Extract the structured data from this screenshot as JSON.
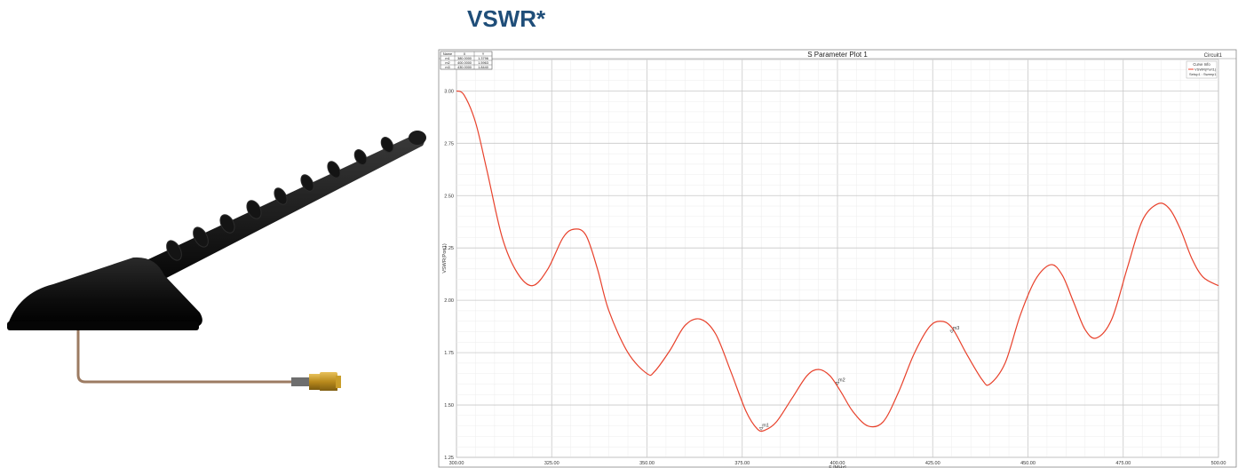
{
  "heading": "VSWR*",
  "product_image": {
    "depicts": "black shark-fin antenna with coiled whip and coax cable with gold SMA connector"
  },
  "chart_data": {
    "type": "line",
    "title": "S Parameter Plot 1",
    "circuit_label": "Circuit1",
    "xlabel": "F [MHz]",
    "ylabel": "VSWR(Port1)",
    "xlim": [
      300,
      500
    ],
    "ylim": [
      1.25,
      3.15
    ],
    "grid": true,
    "x_ticks": [
      "300.00",
      "325.00",
      "350.00",
      "375.00",
      "400.00",
      "425.00",
      "450.00",
      "475.00",
      "500.00"
    ],
    "y_ticks": [
      "3.00",
      "2.75",
      "2.50",
      "2.25",
      "2.00",
      "1.75",
      "1.50",
      "1.25"
    ],
    "x_tick_values": [
      300,
      325,
      350,
      375,
      400,
      425,
      450,
      475,
      500
    ],
    "y_tick_values": [
      3.0,
      2.75,
      2.5,
      2.25,
      2.0,
      1.75,
      1.5,
      1.25
    ],
    "legend": {
      "title": "Curve Info",
      "entries": [
        "VSWR(Port1)",
        "Setup1 : Sweep1"
      ],
      "placement": "top-right"
    },
    "series": [
      {
        "color": "#e8412b",
        "x": [
          300,
          302,
          305,
          308,
          312,
          316,
          320,
          324,
          328,
          331,
          334,
          337,
          340,
          345,
          350,
          352,
          356,
          360,
          364,
          368,
          372,
          376,
          379,
          381,
          384,
          388,
          392,
          395,
          398,
          401,
          404,
          408,
          412,
          416,
          420,
          424,
          427,
          430,
          434,
          438,
          440,
          444,
          448,
          452,
          456,
          459,
          462,
          465,
          468,
          472,
          476,
          480,
          484,
          487,
          490,
          493,
          496,
          500
        ],
        "y": [
          3.0,
          2.98,
          2.85,
          2.62,
          2.3,
          2.13,
          2.07,
          2.15,
          2.3,
          2.34,
          2.31,
          2.15,
          1.95,
          1.75,
          1.65,
          1.66,
          1.76,
          1.88,
          1.91,
          1.84,
          1.66,
          1.47,
          1.385,
          1.38,
          1.42,
          1.53,
          1.64,
          1.67,
          1.64,
          1.56,
          1.47,
          1.4,
          1.42,
          1.56,
          1.74,
          1.87,
          1.9,
          1.87,
          1.74,
          1.62,
          1.6,
          1.7,
          1.93,
          2.1,
          2.17,
          2.12,
          1.99,
          1.86,
          1.82,
          1.91,
          2.15,
          2.38,
          2.46,
          2.44,
          2.34,
          2.2,
          2.11,
          2.07
        ]
      }
    ],
    "markers_table": {
      "headers": [
        "Name",
        "X",
        "Y"
      ],
      "rows": [
        [
          "m1",
          "380.0000",
          "1.3796"
        ],
        [
          "m2",
          "400.0000",
          "1.5963"
        ],
        [
          "m3",
          "430.0000",
          "1.8440"
        ]
      ]
    },
    "markers": [
      {
        "name": "m1",
        "x": 380,
        "y": 1.3796
      },
      {
        "name": "m2",
        "x": 400,
        "y": 1.5963
      },
      {
        "name": "m3",
        "x": 430,
        "y": 1.844
      }
    ],
    "colors": {
      "curve": "#e8412b",
      "grid": "#cfcfcf",
      "heading": "#1f4e79"
    }
  }
}
